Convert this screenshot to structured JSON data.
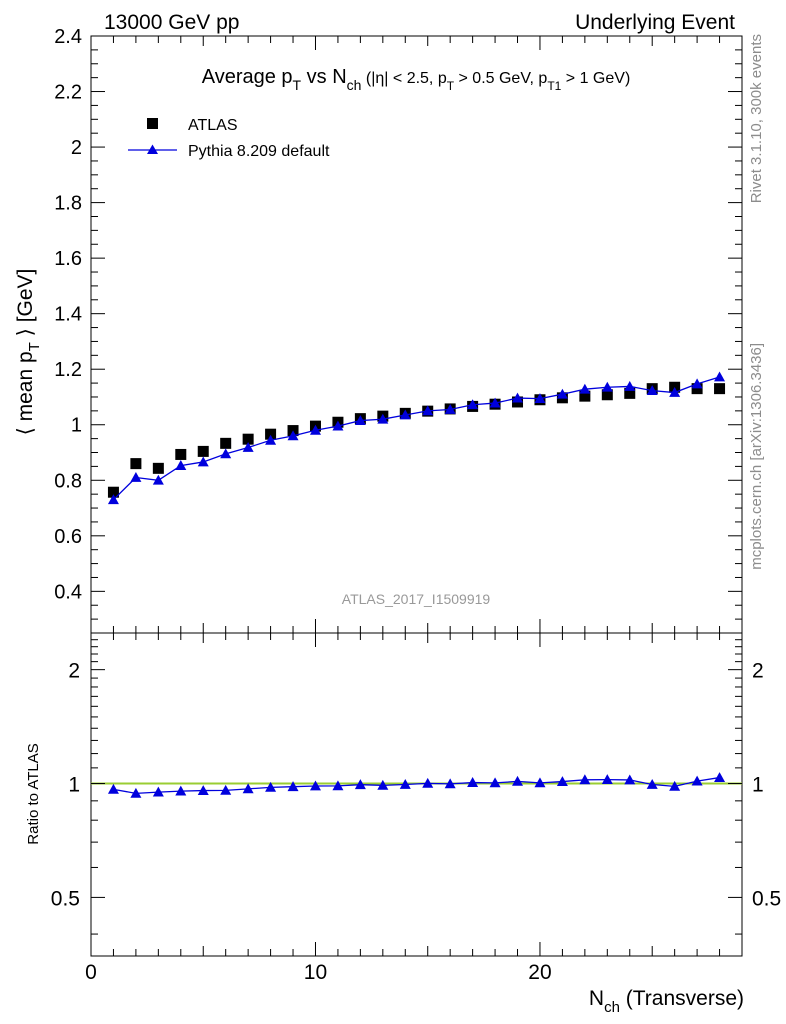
{
  "header": {
    "left": "13000 GeV pp",
    "right": "Underlying Event"
  },
  "side_labels": {
    "rivet": "Rivet 3.1.10,  300k events",
    "mcplots": "mcplots.cern.ch [arXiv:1306.3436]"
  },
  "watermark": "ATLAS_2017_I1509919",
  "chart_data": [
    {
      "type": "scatter",
      "panel": "main",
      "title": "Average p_T vs N_ch (|η| < 2.5, p_T > 0.5 GeV, p_T1 > 1 GeV)",
      "ylabel": "⟨ mean p_T ⟩ [GeV]",
      "xlabel": "",
      "xlim": [
        0,
        29
      ],
      "ylim": [
        0.25,
        2.4
      ],
      "yticks": [
        0.4,
        0.6,
        0.8,
        1,
        1.2,
        1.4,
        1.6,
        1.8,
        2,
        2.2,
        2.4
      ],
      "legend_position": "top-left",
      "x": [
        1,
        2,
        3,
        4,
        5,
        6,
        7,
        8,
        9,
        10,
        11,
        12,
        13,
        14,
        15,
        16,
        17,
        18,
        19,
        20,
        21,
        22,
        23,
        24,
        25,
        26,
        27,
        28
      ],
      "series": [
        {
          "name": "ATLAS",
          "marker": "square",
          "color": "#000000",
          "values": [
            0.757,
            0.86,
            0.843,
            0.893,
            0.904,
            0.933,
            0.948,
            0.966,
            0.979,
            0.995,
            1.009,
            1.022,
            1.031,
            1.041,
            1.049,
            1.057,
            1.066,
            1.074,
            1.082,
            1.09,
            1.097,
            1.103,
            1.108,
            1.113,
            1.13,
            1.135,
            1.13,
            1.13
          ]
        },
        {
          "name": "Pythia 8.209 default",
          "marker": "triangle",
          "color": "#0000dd",
          "values": [
            0.73,
            0.81,
            0.8,
            0.853,
            0.866,
            0.895,
            0.918,
            0.944,
            0.96,
            0.98,
            0.995,
            1.015,
            1.02,
            1.035,
            1.05,
            1.055,
            1.072,
            1.078,
            1.096,
            1.094,
            1.11,
            1.128,
            1.135,
            1.138,
            1.123,
            1.116,
            1.147,
            1.172
          ]
        }
      ]
    },
    {
      "type": "line",
      "panel": "ratio",
      "ylabel": "Ratio to ATLAS",
      "xlabel": "N_ch (Transverse)",
      "xlim": [
        0,
        29
      ],
      "ylim": [
        0.35,
        2.5
      ],
      "yscale": "log",
      "yticks": [
        0.5,
        1,
        2
      ],
      "xticks": [
        0,
        10,
        20
      ],
      "reference_line": 1,
      "reference_color": "#9acd32",
      "x": [
        1,
        2,
        3,
        4,
        5,
        6,
        7,
        8,
        9,
        10,
        11,
        12,
        13,
        14,
        15,
        16,
        17,
        18,
        19,
        20,
        21,
        22,
        23,
        24,
        25,
        26,
        27,
        28
      ],
      "series": [
        {
          "name": "Pythia 8.209 default",
          "marker": "triangle",
          "color": "#0000dd",
          "values": [
            0.965,
            0.942,
            0.949,
            0.955,
            0.958,
            0.959,
            0.968,
            0.977,
            0.981,
            0.985,
            0.986,
            0.993,
            0.989,
            0.994,
            1.001,
            0.998,
            1.006,
            1.004,
            1.013,
            1.004,
            1.012,
            1.023,
            1.024,
            1.022,
            0.994,
            0.983,
            1.015,
            1.037
          ]
        }
      ]
    }
  ]
}
